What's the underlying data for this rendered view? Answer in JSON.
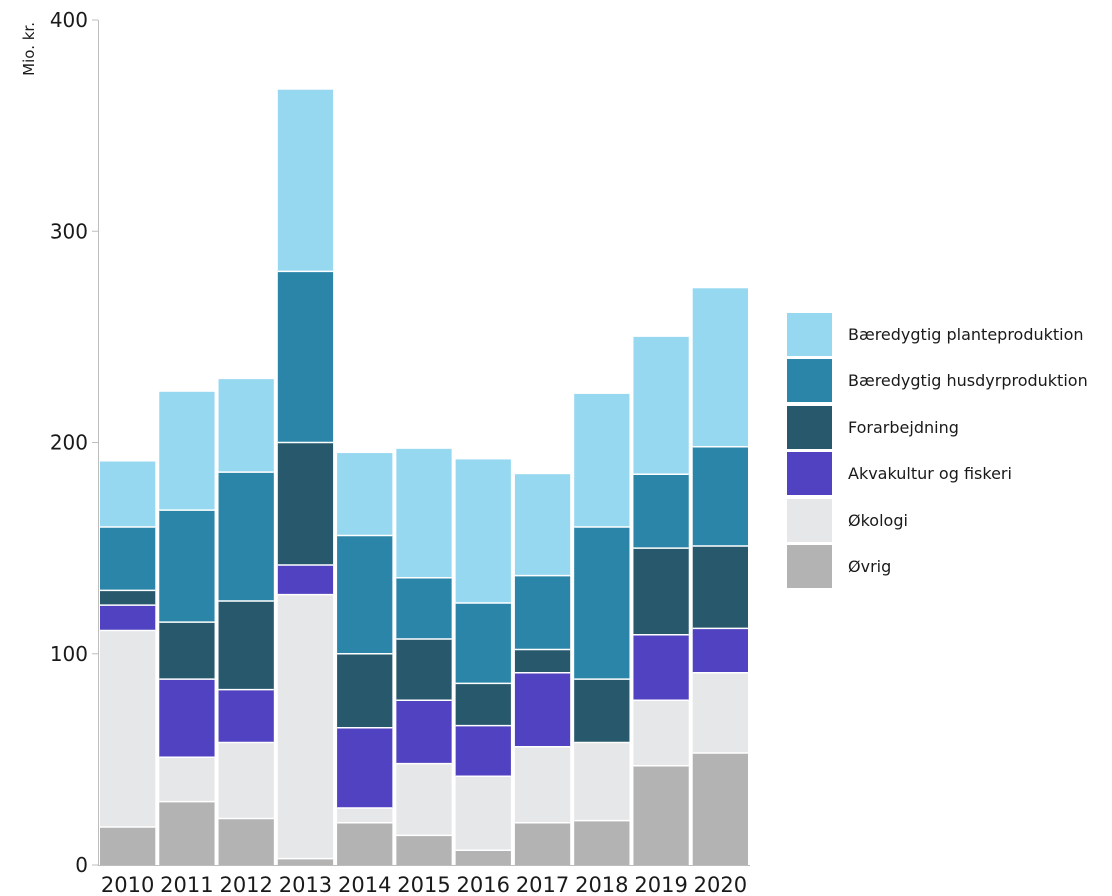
{
  "chart_data": {
    "type": "bar",
    "stacked": true,
    "title": "",
    "xlabel": "",
    "ylabel": "Mio. kr.",
    "ylim": [
      0,
      400
    ],
    "yticks": [
      0,
      100,
      200,
      300,
      400
    ],
    "grid": false,
    "legend_position": "right",
    "categories": [
      "2010",
      "2011",
      "2012",
      "2013",
      "2014",
      "2015",
      "2016",
      "2017",
      "2018",
      "2019",
      "2020"
    ],
    "series": [
      {
        "name": "Øvrig",
        "color": "#b3b3b3",
        "values": [
          18,
          30,
          22,
          3,
          20,
          14,
          7,
          20,
          21,
          47,
          53
        ]
      },
      {
        "name": "Økologi",
        "color": "#e6e7e8",
        "values": [
          93,
          21,
          36,
          125,
          7,
          34,
          35,
          36,
          37,
          31,
          38
        ]
      },
      {
        "name": "Akvakultur og fiskeri",
        "color": "#5042c1",
        "values": [
          12,
          37,
          25,
          14,
          38,
          30,
          24,
          35,
          0,
          31,
          21
        ]
      },
      {
        "name": "Forarbejdning",
        "color": "#27586c",
        "values": [
          7,
          27,
          42,
          58,
          35,
          29,
          20,
          11,
          30,
          41,
          39
        ]
      },
      {
        "name": "Bæredygtig husdyrproduktion",
        "color": "#2a85a8",
        "values": [
          30,
          53,
          61,
          81,
          56,
          29,
          38,
          35,
          72,
          35,
          47
        ]
      },
      {
        "name": "Bæredygtig planteproduktion",
        "color": "#97d8f1",
        "values": [
          31,
          56,
          44,
          86,
          39,
          61,
          68,
          48,
          63,
          65,
          75
        ]
      }
    ]
  },
  "legend": [
    {
      "label": "Bæredygtig planteproduktion",
      "color": "#97d8f1"
    },
    {
      "label": "Bæredygtig husdyrproduktion",
      "color": "#2a85a8"
    },
    {
      "label": "Forarbejdning",
      "color": "#27586c"
    },
    {
      "label": "Akvakultur og fiskeri",
      "color": "#5042c1"
    },
    {
      "label": "Økologi",
      "color": "#e6e7e8"
    },
    {
      "label": "Øvrig",
      "color": "#b3b3b3"
    }
  ]
}
